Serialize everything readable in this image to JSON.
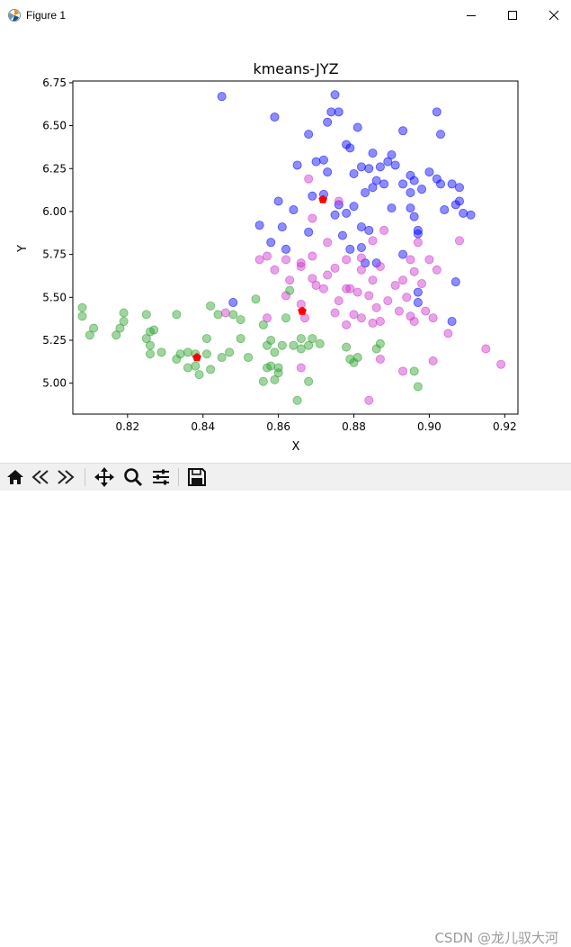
{
  "window": {
    "title": "Figure 1",
    "controls": [
      "minimize-icon",
      "maximize-icon",
      "close-icon"
    ]
  },
  "toolbar": {
    "buttons": [
      "home-icon",
      "back-icon",
      "forward-icon",
      "pan-icon",
      "zoom-icon",
      "subplots-icon",
      "save-icon"
    ]
  },
  "watermark": "CSDN @龙儿驭大河",
  "chart_data": {
    "type": "scatter",
    "title": "kmeans-JYZ",
    "xlabel": "X",
    "ylabel": "Y",
    "xlim": [
      0.8055,
      0.9235
    ],
    "ylim": [
      4.82,
      6.76
    ],
    "xticks": [
      "0.82",
      "0.84",
      "0.86",
      "0.88",
      "0.90",
      "0.92"
    ],
    "yticks": [
      "5.00",
      "5.25",
      "5.50",
      "5.75",
      "6.00",
      "6.25",
      "6.50",
      "6.75"
    ],
    "grid": false,
    "colors": {
      "blue": "#0000ff",
      "magenta": "#cc33cc",
      "green": "#2ca02c",
      "centroid": "#ff0000"
    },
    "series": [
      {
        "color": "#0000ff",
        "points": [
          [
            0.845,
            6.67
          ],
          [
            0.859,
            6.55
          ],
          [
            0.875,
            6.68
          ],
          [
            0.874,
            6.58
          ],
          [
            0.876,
            6.58
          ],
          [
            0.873,
            6.52
          ],
          [
            0.902,
            6.58
          ],
          [
            0.881,
            6.49
          ],
          [
            0.868,
            6.45
          ],
          [
            0.893,
            6.47
          ],
          [
            0.903,
            6.45
          ],
          [
            0.878,
            6.39
          ],
          [
            0.879,
            6.37
          ],
          [
            0.885,
            6.34
          ],
          [
            0.872,
            6.3
          ],
          [
            0.865,
            6.27
          ],
          [
            0.87,
            6.29
          ],
          [
            0.882,
            6.26
          ],
          [
            0.884,
            6.25
          ],
          [
            0.889,
            6.29
          ],
          [
            0.89,
            6.33
          ],
          [
            0.887,
            6.26
          ],
          [
            0.891,
            6.27
          ],
          [
            0.88,
            6.22
          ],
          [
            0.895,
            6.21
          ],
          [
            0.9,
            6.23
          ],
          [
            0.873,
            6.23
          ],
          [
            0.896,
            6.18
          ],
          [
            0.886,
            6.18
          ],
          [
            0.888,
            6.16
          ],
          [
            0.883,
            6.11
          ],
          [
            0.885,
            6.14
          ],
          [
            0.893,
            6.16
          ],
          [
            0.895,
            6.11
          ],
          [
            0.898,
            6.13
          ],
          [
            0.902,
            6.19
          ],
          [
            0.903,
            6.16
          ],
          [
            0.906,
            6.16
          ],
          [
            0.908,
            6.14
          ],
          [
            0.869,
            6.09
          ],
          [
            0.872,
            6.1
          ],
          [
            0.86,
            6.06
          ],
          [
            0.864,
            6.01
          ],
          [
            0.876,
            6.04
          ],
          [
            0.878,
            5.99
          ],
          [
            0.88,
            6.03
          ],
          [
            0.89,
            6.02
          ],
          [
            0.895,
            6.02
          ],
          [
            0.904,
            6.01
          ],
          [
            0.907,
            6.04
          ],
          [
            0.908,
            6.06
          ],
          [
            0.909,
            5.99
          ],
          [
            0.911,
            5.98
          ],
          [
            0.896,
            5.97
          ],
          [
            0.875,
            5.98
          ],
          [
            0.855,
            5.92
          ],
          [
            0.861,
            5.91
          ],
          [
            0.868,
            5.88
          ],
          [
            0.882,
            5.91
          ],
          [
            0.884,
            5.89
          ],
          [
            0.897,
            5.89
          ],
          [
            0.897,
            5.87
          ],
          [
            0.877,
            5.86
          ],
          [
            0.858,
            5.82
          ],
          [
            0.862,
            5.78
          ],
          [
            0.879,
            5.78
          ],
          [
            0.882,
            5.79
          ],
          [
            0.893,
            5.75
          ],
          [
            0.883,
            5.7
          ],
          [
            0.886,
            5.7
          ],
          [
            0.848,
            5.47
          ],
          [
            0.897,
            5.47
          ],
          [
            0.906,
            5.36
          ],
          [
            0.897,
            5.53
          ],
          [
            0.907,
            5.59
          ]
        ]
      },
      {
        "color": "#cc33cc",
        "points": [
          [
            0.868,
            6.19
          ],
          [
            0.876,
            6.06
          ],
          [
            0.869,
            5.96
          ],
          [
            0.873,
            5.82
          ],
          [
            0.885,
            5.83
          ],
          [
            0.888,
            5.89
          ],
          [
            0.897,
            5.82
          ],
          [
            0.908,
            5.83
          ],
          [
            0.857,
            5.74
          ],
          [
            0.855,
            5.72
          ],
          [
            0.862,
            5.72
          ],
          [
            0.866,
            5.7
          ],
          [
            0.869,
            5.74
          ],
          [
            0.878,
            5.72
          ],
          [
            0.882,
            5.73
          ],
          [
            0.895,
            5.72
          ],
          [
            0.9,
            5.72
          ],
          [
            0.859,
            5.66
          ],
          [
            0.866,
            5.68
          ],
          [
            0.875,
            5.67
          ],
          [
            0.882,
            5.66
          ],
          [
            0.887,
            5.68
          ],
          [
            0.896,
            5.65
          ],
          [
            0.902,
            5.66
          ],
          [
            0.863,
            5.6
          ],
          [
            0.869,
            5.61
          ],
          [
            0.873,
            5.63
          ],
          [
            0.878,
            5.55
          ],
          [
            0.885,
            5.6
          ],
          [
            0.891,
            5.57
          ],
          [
            0.893,
            5.6
          ],
          [
            0.898,
            5.58
          ],
          [
            0.87,
            5.57
          ],
          [
            0.872,
            5.55
          ],
          [
            0.879,
            5.55
          ],
          [
            0.881,
            5.53
          ],
          [
            0.884,
            5.51
          ],
          [
            0.862,
            5.51
          ],
          [
            0.876,
            5.48
          ],
          [
            0.889,
            5.48
          ],
          [
            0.894,
            5.5
          ],
          [
            0.866,
            5.46
          ],
          [
            0.886,
            5.44
          ],
          [
            0.892,
            5.42
          ],
          [
            0.899,
            5.42
          ],
          [
            0.846,
            5.41
          ],
          [
            0.857,
            5.38
          ],
          [
            0.867,
            5.38
          ],
          [
            0.875,
            5.41
          ],
          [
            0.88,
            5.4
          ],
          [
            0.882,
            5.38
          ],
          [
            0.887,
            5.36
          ],
          [
            0.895,
            5.39
          ],
          [
            0.896,
            5.36
          ],
          [
            0.901,
            5.38
          ],
          [
            0.878,
            5.34
          ],
          [
            0.885,
            5.35
          ],
          [
            0.905,
            5.29
          ],
          [
            0.915,
            5.2
          ],
          [
            0.919,
            5.11
          ],
          [
            0.887,
            5.14
          ],
          [
            0.893,
            5.07
          ],
          [
            0.901,
            5.13
          ],
          [
            0.866,
            5.09
          ],
          [
            0.884,
            4.9
          ]
        ]
      },
      {
        "color": "#2ca02c",
        "points": [
          [
            0.808,
            5.44
          ],
          [
            0.808,
            5.39
          ],
          [
            0.811,
            5.32
          ],
          [
            0.81,
            5.28
          ],
          [
            0.819,
            5.41
          ],
          [
            0.819,
            5.36
          ],
          [
            0.818,
            5.32
          ],
          [
            0.817,
            5.28
          ],
          [
            0.825,
            5.4
          ],
          [
            0.825,
            5.26
          ],
          [
            0.826,
            5.3
          ],
          [
            0.827,
            5.31
          ],
          [
            0.826,
            5.22
          ],
          [
            0.826,
            5.17
          ],
          [
            0.829,
            5.18
          ],
          [
            0.833,
            5.4
          ],
          [
            0.834,
            5.17
          ],
          [
            0.833,
            5.14
          ],
          [
            0.836,
            5.18
          ],
          [
            0.836,
            5.09
          ],
          [
            0.838,
            5.1
          ],
          [
            0.838,
            5.17
          ],
          [
            0.839,
            5.05
          ],
          [
            0.841,
            5.17
          ],
          [
            0.842,
            5.08
          ],
          [
            0.841,
            5.26
          ],
          [
            0.842,
            5.45
          ],
          [
            0.844,
            5.4
          ],
          [
            0.845,
            5.15
          ],
          [
            0.847,
            5.18
          ],
          [
            0.848,
            5.4
          ],
          [
            0.85,
            5.26
          ],
          [
            0.85,
            5.37
          ],
          [
            0.852,
            5.15
          ],
          [
            0.854,
            5.49
          ],
          [
            0.856,
            5.34
          ],
          [
            0.857,
            5.22
          ],
          [
            0.858,
            5.25
          ],
          [
            0.859,
            5.18
          ],
          [
            0.857,
            5.09
          ],
          [
            0.858,
            5.1
          ],
          [
            0.86,
            5.09
          ],
          [
            0.856,
            5.01
          ],
          [
            0.859,
            5.02
          ],
          [
            0.86,
            5.06
          ],
          [
            0.861,
            5.22
          ],
          [
            0.862,
            5.38
          ],
          [
            0.863,
            5.54
          ],
          [
            0.864,
            5.22
          ],
          [
            0.866,
            5.2
          ],
          [
            0.866,
            5.26
          ],
          [
            0.868,
            5.22
          ],
          [
            0.869,
            5.26
          ],
          [
            0.871,
            5.23
          ],
          [
            0.865,
            4.9
          ],
          [
            0.868,
            5.01
          ],
          [
            0.878,
            5.21
          ],
          [
            0.879,
            5.14
          ],
          [
            0.88,
            5.12
          ],
          [
            0.881,
            5.15
          ],
          [
            0.886,
            5.2
          ],
          [
            0.887,
            5.23
          ],
          [
            0.896,
            5.07
          ],
          [
            0.897,
            4.98
          ]
        ]
      }
    ],
    "centroids": [
      [
        0.8718,
        6.07
      ],
      [
        0.8663,
        5.42
      ],
      [
        0.8384,
        5.15
      ]
    ]
  }
}
